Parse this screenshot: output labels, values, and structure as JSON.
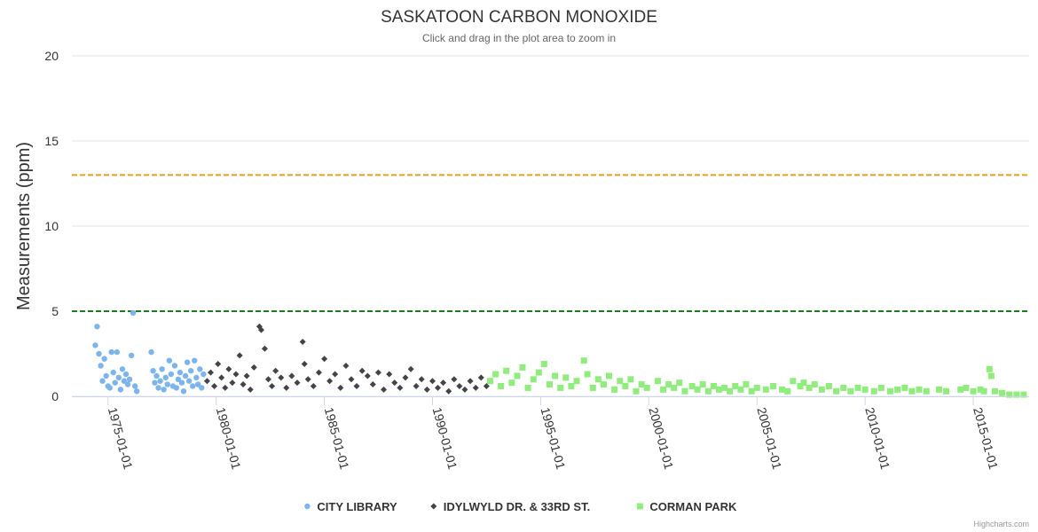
{
  "chart_data": {
    "type": "scatter",
    "title": "SASKATOON CARBON MONOXIDE",
    "subtitle": "Click and drag in the plot area to zoom in",
    "ylabel": "Measurements (ppm)",
    "xlabel": "",
    "ylim": [
      0,
      20
    ],
    "yticks": [
      "0",
      "5",
      "10",
      "15",
      "20"
    ],
    "xrange": [
      "1973-05-01",
      "2017-08-01"
    ],
    "xticks": [
      "1975-01-01",
      "1980-01-01",
      "1985-01-01",
      "1990-01-01",
      "1995-01-01",
      "2000-01-01",
      "2005-01-01",
      "2010-01-01",
      "2015-01-01"
    ],
    "grid": true,
    "legend_position": "bottom-center",
    "plot_lines": [
      {
        "value": 13,
        "color": "#e0a020",
        "style": "dashed"
      },
      {
        "value": 5,
        "color": "#1f7a1f",
        "style": "dashed"
      }
    ],
    "series": [
      {
        "name": "CITY LIBRARY",
        "marker": "circle",
        "color": "#7cb5ec",
        "points": [
          [
            "1974-06-01",
            3.0
          ],
          [
            "1974-07-01",
            4.1
          ],
          [
            "1974-08-01",
            2.5
          ],
          [
            "1974-09-01",
            1.8
          ],
          [
            "1974-10-01",
            0.9
          ],
          [
            "1974-11-01",
            2.2
          ],
          [
            "1974-12-01",
            1.2
          ],
          [
            "1975-01-01",
            0.6
          ],
          [
            "1975-02-01",
            0.5
          ],
          [
            "1975-03-01",
            2.6
          ],
          [
            "1975-04-01",
            1.4
          ],
          [
            "1975-05-01",
            0.8
          ],
          [
            "1975-06-01",
            2.6
          ],
          [
            "1975-07-01",
            1.1
          ],
          [
            "1975-08-01",
            0.4
          ],
          [
            "1975-09-01",
            1.6
          ],
          [
            "1975-10-01",
            0.9
          ],
          [
            "1975-11-01",
            1.3
          ],
          [
            "1975-12-01",
            0.7
          ],
          [
            "1976-01-01",
            1.0
          ],
          [
            "1976-02-01",
            2.4
          ],
          [
            "1976-03-01",
            4.9
          ],
          [
            "1976-04-01",
            0.6
          ],
          [
            "1976-05-01",
            0.3
          ],
          [
            "1977-01-01",
            2.6
          ],
          [
            "1977-02-01",
            1.5
          ],
          [
            "1977-03-01",
            0.8
          ],
          [
            "1977-04-01",
            1.2
          ],
          [
            "1977-05-01",
            0.5
          ],
          [
            "1977-06-01",
            0.9
          ],
          [
            "1977-07-01",
            1.6
          ],
          [
            "1977-08-01",
            0.4
          ],
          [
            "1977-09-01",
            1.1
          ],
          [
            "1977-10-01",
            0.7
          ],
          [
            "1977-11-01",
            2.1
          ],
          [
            "1977-12-01",
            1.3
          ],
          [
            "1978-01-01",
            0.6
          ],
          [
            "1978-02-01",
            1.8
          ],
          [
            "1978-03-01",
            0.5
          ],
          [
            "1978-04-01",
            1.0
          ],
          [
            "1978-05-01",
            1.4
          ],
          [
            "1978-06-01",
            0.8
          ],
          [
            "1978-07-01",
            0.3
          ],
          [
            "1978-08-01",
            1.2
          ],
          [
            "1978-09-01",
            2.0
          ],
          [
            "1978-10-01",
            0.9
          ],
          [
            "1978-11-01",
            1.5
          ],
          [
            "1978-12-01",
            0.6
          ],
          [
            "1979-01-01",
            2.1
          ],
          [
            "1979-02-01",
            1.1
          ],
          [
            "1979-03-01",
            0.7
          ],
          [
            "1979-04-01",
            1.6
          ],
          [
            "1979-05-01",
            0.5
          ],
          [
            "1979-06-01",
            1.3
          ]
        ]
      },
      {
        "name": "IDYLWYLD DR. & 33RD ST.",
        "marker": "diamond",
        "color": "#434348",
        "points": [
          [
            "1979-08-01",
            0.9
          ],
          [
            "1979-10-01",
            1.4
          ],
          [
            "1979-12-01",
            0.6
          ],
          [
            "1980-02-01",
            1.9
          ],
          [
            "1980-04-01",
            1.1
          ],
          [
            "1980-06-01",
            0.5
          ],
          [
            "1980-08-01",
            1.6
          ],
          [
            "1980-10-01",
            0.8
          ],
          [
            "1980-12-01",
            1.3
          ],
          [
            "1981-02-01",
            2.4
          ],
          [
            "1981-04-01",
            0.7
          ],
          [
            "1981-06-01",
            1.2
          ],
          [
            "1981-08-01",
            0.4
          ],
          [
            "1981-10-01",
            1.7
          ],
          [
            "1982-01-01",
            4.1
          ],
          [
            "1982-02-01",
            3.9
          ],
          [
            "1982-04-01",
            2.8
          ],
          [
            "1982-06-01",
            1.0
          ],
          [
            "1982-08-01",
            0.6
          ],
          [
            "1982-10-01",
            1.5
          ],
          [
            "1983-01-01",
            1.1
          ],
          [
            "1983-04-01",
            0.5
          ],
          [
            "1983-07-01",
            1.2
          ],
          [
            "1983-10-01",
            0.8
          ],
          [
            "1984-01-01",
            3.2
          ],
          [
            "1984-02-01",
            1.9
          ],
          [
            "1984-04-01",
            1.0
          ],
          [
            "1984-07-01",
            0.6
          ],
          [
            "1984-10-01",
            1.4
          ],
          [
            "1985-01-01",
            2.2
          ],
          [
            "1985-04-01",
            0.9
          ],
          [
            "1985-07-01",
            1.3
          ],
          [
            "1985-10-01",
            0.5
          ],
          [
            "1986-01-01",
            1.8
          ],
          [
            "1986-04-01",
            1.0
          ],
          [
            "1986-07-01",
            0.6
          ],
          [
            "1986-10-01",
            1.5
          ],
          [
            "1987-01-01",
            1.2
          ],
          [
            "1987-04-01",
            0.7
          ],
          [
            "1987-07-01",
            1.4
          ],
          [
            "1987-10-01",
            0.4
          ],
          [
            "1988-01-01",
            1.3
          ],
          [
            "1988-04-01",
            0.8
          ],
          [
            "1988-07-01",
            0.5
          ],
          [
            "1988-10-01",
            1.1
          ],
          [
            "1989-01-01",
            1.6
          ],
          [
            "1989-04-01",
            0.6
          ],
          [
            "1989-07-01",
            1.0
          ],
          [
            "1989-10-01",
            0.4
          ],
          [
            "1990-01-01",
            0.9
          ],
          [
            "1990-04-01",
            0.5
          ],
          [
            "1990-07-01",
            0.8
          ],
          [
            "1990-10-01",
            0.3
          ],
          [
            "1991-01-01",
            1.0
          ],
          [
            "1991-04-01",
            0.6
          ],
          [
            "1991-07-01",
            0.4
          ],
          [
            "1991-10-01",
            0.9
          ],
          [
            "1992-01-01",
            0.5
          ],
          [
            "1992-04-01",
            1.1
          ],
          [
            "1992-07-01",
            0.6
          ]
        ]
      },
      {
        "name": "CORMAN PARK",
        "marker": "square",
        "color": "#90ed7d",
        "points": [
          [
            "1992-09-01",
            0.9
          ],
          [
            "1992-12-01",
            1.3
          ],
          [
            "1993-03-01",
            0.6
          ],
          [
            "1993-06-01",
            1.5
          ],
          [
            "1993-09-01",
            0.8
          ],
          [
            "1993-12-01",
            1.2
          ],
          [
            "1994-03-01",
            1.7
          ],
          [
            "1994-06-01",
            0.5
          ],
          [
            "1994-09-01",
            1.0
          ],
          [
            "1994-12-01",
            1.4
          ],
          [
            "1995-03-01",
            1.9
          ],
          [
            "1995-06-01",
            0.7
          ],
          [
            "1995-09-01",
            1.2
          ],
          [
            "1995-12-01",
            0.5
          ],
          [
            "1996-03-01",
            1.1
          ],
          [
            "1996-06-01",
            0.6
          ],
          [
            "1996-09-01",
            0.9
          ],
          [
            "1997-01-01",
            2.1
          ],
          [
            "1997-03-01",
            1.3
          ],
          [
            "1997-06-01",
            0.5
          ],
          [
            "1997-09-01",
            1.0
          ],
          [
            "1997-12-01",
            0.7
          ],
          [
            "1998-03-01",
            1.2
          ],
          [
            "1998-06-01",
            0.4
          ],
          [
            "1998-09-01",
            0.9
          ],
          [
            "1998-12-01",
            0.6
          ],
          [
            "1999-03-01",
            1.0
          ],
          [
            "1999-06-01",
            0.3
          ],
          [
            "1999-09-01",
            0.7
          ],
          [
            "1999-12-01",
            0.5
          ],
          [
            "2000-06-01",
            0.9
          ],
          [
            "2000-09-01",
            0.4
          ],
          [
            "2000-12-01",
            0.7
          ],
          [
            "2001-03-01",
            0.5
          ],
          [
            "2001-06-01",
            0.8
          ],
          [
            "2001-09-01",
            0.3
          ],
          [
            "2002-01-01",
            0.6
          ],
          [
            "2002-04-01",
            0.4
          ],
          [
            "2002-07-01",
            0.7
          ],
          [
            "2002-10-01",
            0.3
          ],
          [
            "2003-01-01",
            0.6
          ],
          [
            "2003-04-01",
            0.4
          ],
          [
            "2003-07-01",
            0.5
          ],
          [
            "2003-10-01",
            0.3
          ],
          [
            "2004-01-01",
            0.6
          ],
          [
            "2004-04-01",
            0.4
          ],
          [
            "2004-07-01",
            0.7
          ],
          [
            "2004-10-01",
            0.3
          ],
          [
            "2005-01-01",
            0.5
          ],
          [
            "2005-06-01",
            0.4
          ],
          [
            "2005-10-01",
            0.6
          ],
          [
            "2006-03-01",
            0.4
          ],
          [
            "2006-06-01",
            0.3
          ],
          [
            "2006-09-01",
            0.9
          ],
          [
            "2007-01-01",
            0.6
          ],
          [
            "2007-03-01",
            0.8
          ],
          [
            "2007-06-01",
            0.5
          ],
          [
            "2007-09-01",
            0.7
          ],
          [
            "2008-01-01",
            0.4
          ],
          [
            "2008-05-01",
            0.6
          ],
          [
            "2008-09-01",
            0.3
          ],
          [
            "2009-01-01",
            0.5
          ],
          [
            "2009-05-01",
            0.3
          ],
          [
            "2009-09-01",
            0.5
          ],
          [
            "2010-01-01",
            0.4
          ],
          [
            "2010-06-01",
            0.3
          ],
          [
            "2010-10-01",
            0.5
          ],
          [
            "2011-03-01",
            0.3
          ],
          [
            "2011-07-01",
            0.4
          ],
          [
            "2011-11-01",
            0.5
          ],
          [
            "2012-03-01",
            0.3
          ],
          [
            "2012-07-01",
            0.4
          ],
          [
            "2012-11-01",
            0.3
          ],
          [
            "2013-06-01",
            0.4
          ],
          [
            "2013-10-01",
            0.3
          ],
          [
            "2014-06-01",
            0.4
          ],
          [
            "2014-09-01",
            0.5
          ],
          [
            "2015-01-01",
            0.3
          ],
          [
            "2015-05-01",
            0.4
          ],
          [
            "2015-07-01",
            0.3
          ],
          [
            "2015-10-01",
            1.6
          ],
          [
            "2015-11-01",
            1.2
          ],
          [
            "2016-01-01",
            0.3
          ],
          [
            "2016-05-01",
            0.2
          ],
          [
            "2016-09-01",
            0.1
          ],
          [
            "2017-01-01",
            0.1
          ],
          [
            "2017-05-01",
            0.1
          ]
        ]
      }
    ]
  },
  "credits": "Highcharts.com"
}
